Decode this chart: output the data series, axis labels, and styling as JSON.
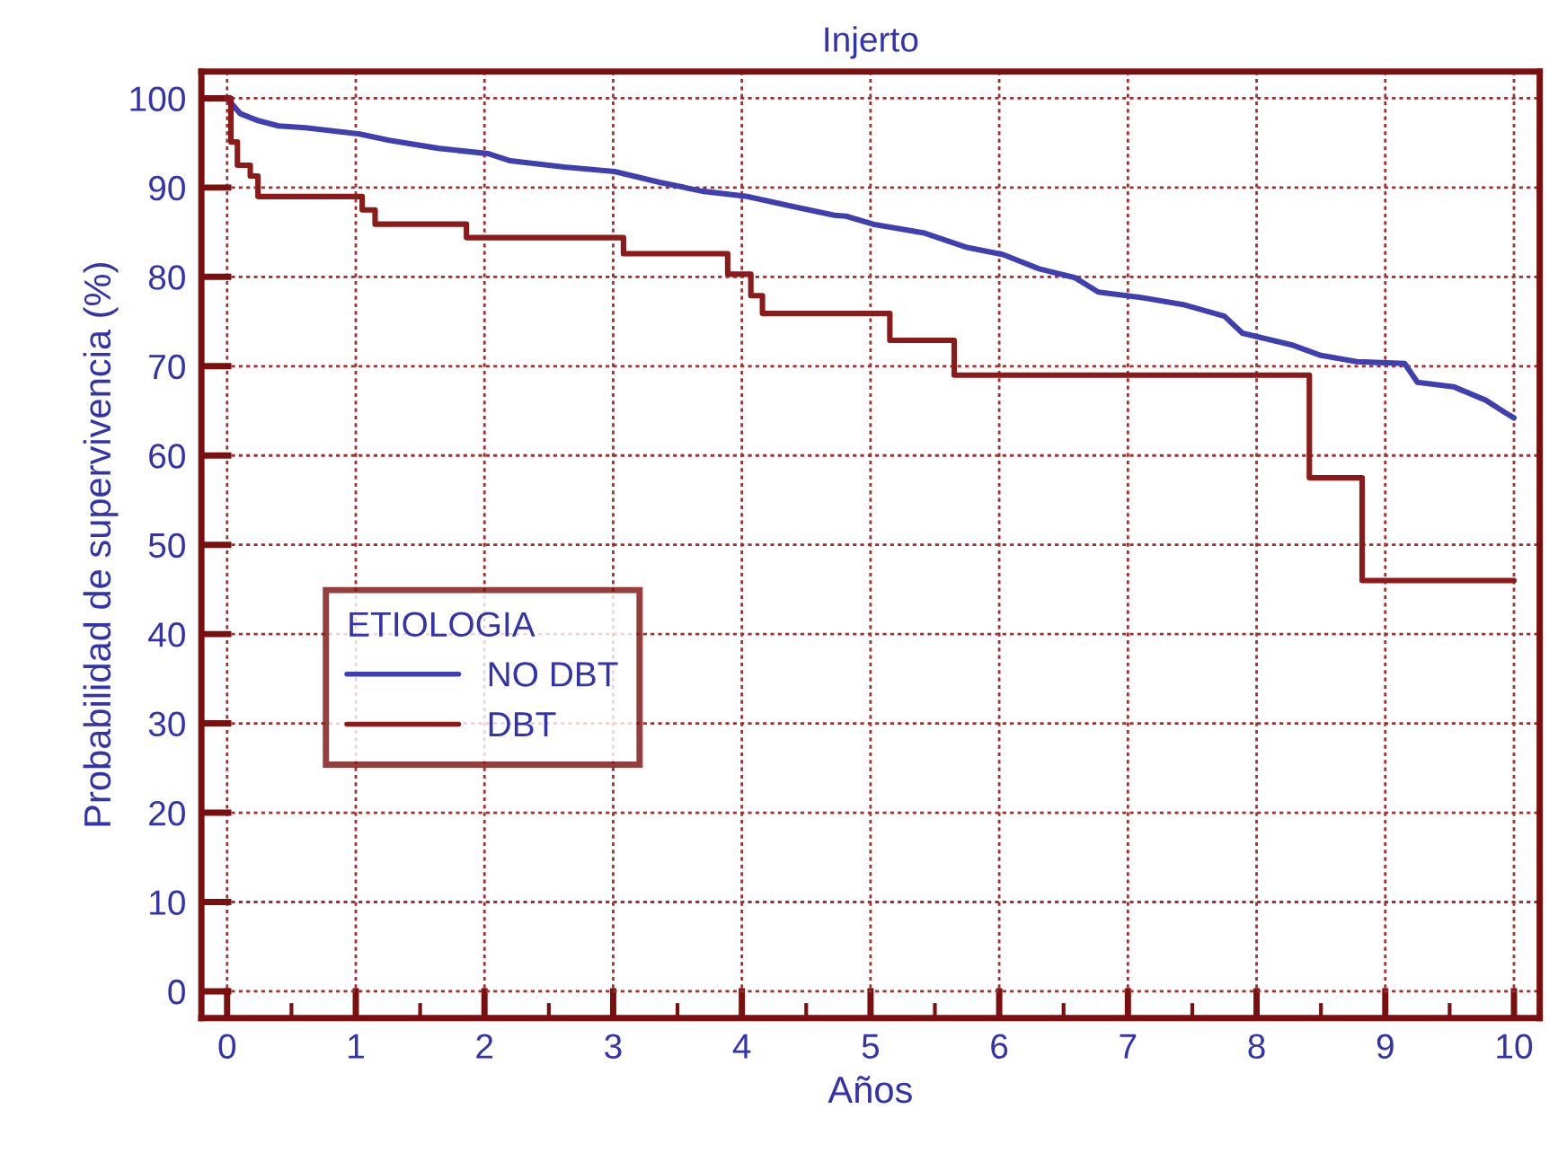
{
  "chart_data": {
    "type": "line",
    "title": "Injerto",
    "xlabel": "Años",
    "ylabel": "Probabilidad de supervivencia (%)",
    "legend_title": "ETIOLOGIA",
    "xlim": [
      -0.2,
      10.2
    ],
    "ylim": [
      -3,
      103
    ],
    "xticks": [
      0,
      {
        "value": 0.5,
        "label": null
      },
      1,
      {
        "value": 1.5,
        "label": null
      },
      2,
      {
        "value": 2.5,
        "label": null
      },
      3,
      {
        "value": 3.5,
        "label": null
      },
      4,
      {
        "value": 4.5,
        "label": null
      },
      5,
      {
        "value": 5.5,
        "label": null
      },
      6,
      {
        "value": 6.5,
        "label": null
      },
      7,
      {
        "value": 7.5,
        "label": null
      },
      8,
      {
        "value": 8.5,
        "label": null
      },
      9,
      {
        "value": 9.5,
        "label": null
      },
      10
    ],
    "yticks": [
      0,
      10,
      20,
      30,
      40,
      50,
      60,
      70,
      80,
      90,
      100
    ],
    "grid": true,
    "legend": "center left",
    "series": [
      {
        "name": "NO DBT",
        "color": "#3f3faf",
        "x": [
          0,
          0.1,
          0.24,
          0.4,
          0.61,
          1.03,
          1.26,
          1.64,
          2.03,
          2.2,
          2.62,
          3.01,
          3.36,
          3.69,
          4.04,
          4.39,
          4.72,
          4.81,
          5.02,
          5.42,
          5.75,
          6.03,
          6.31,
          6.59,
          6.77,
          7.1,
          7.43,
          7.75,
          7.89,
          8.27,
          8.5,
          8.78,
          9.15,
          9.25,
          9.53,
          9.78,
          9.92,
          10.0
        ],
        "values": [
          100,
          98.3,
          97.5,
          96.9,
          96.7,
          96.0,
          95.3,
          94.4,
          93.8,
          93.0,
          92.3,
          91.8,
          90.6,
          89.6,
          89.0,
          87.9,
          86.9,
          86.8,
          85.9,
          84.9,
          83.3,
          82.5,
          80.9,
          79.9,
          78.3,
          77.7,
          76.9,
          75.6,
          73.7,
          72.4,
          71.2,
          70.5,
          70.3,
          68.2,
          67.7,
          66.2,
          64.9,
          64.2
        ]
      },
      {
        "name": "DBT",
        "type": "step",
        "color": "#8b1a1a",
        "x": [
          0,
          0.03,
          0.08,
          0.18,
          0.24,
          1.05,
          1.15,
          1.86,
          3.08,
          3.89,
          4.07,
          4.16,
          5.15,
          5.65,
          8.41,
          8.82,
          10.0
        ],
        "values": [
          100,
          95.1,
          92.5,
          91.3,
          89.0,
          87.5,
          85.9,
          84.4,
          82.6,
          80.3,
          77.9,
          75.9,
          72.9,
          69.0,
          57.5,
          46.0,
          46.0
        ]
      }
    ]
  }
}
